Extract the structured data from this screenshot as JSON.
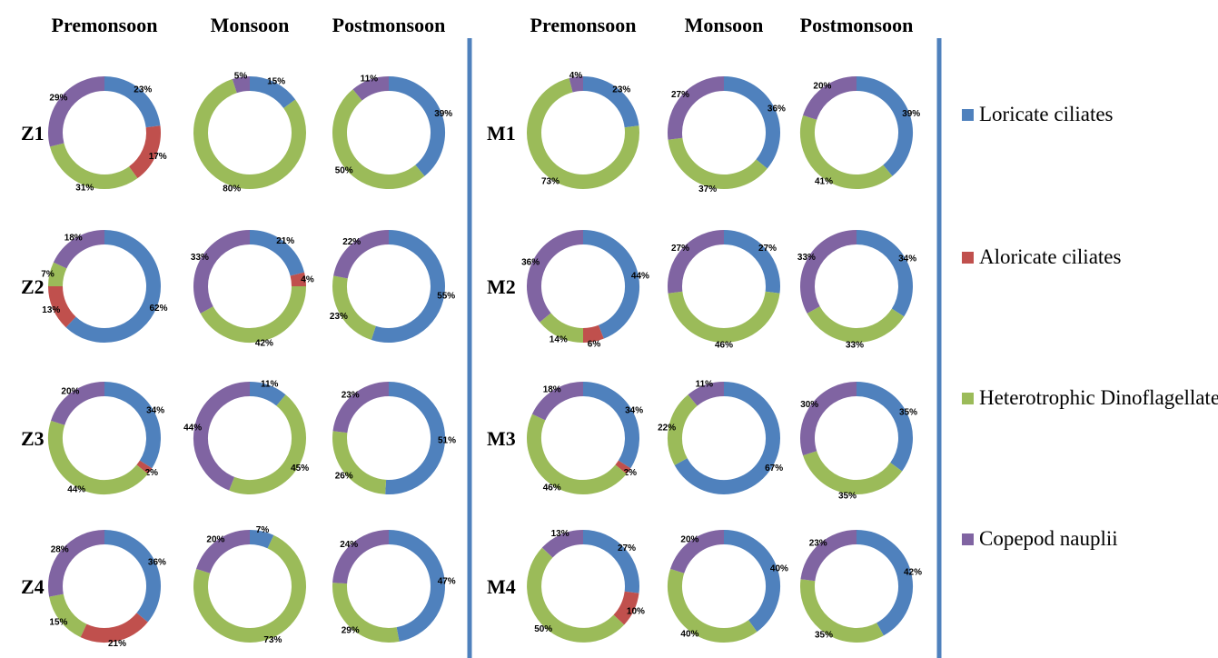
{
  "chart_data": {
    "type": "pie",
    "variant": "donut",
    "title": "",
    "colors": {
      "Loricate ciliates": "#4f81bd",
      "Aloricate ciliates": "#c0504d",
      "Heterotrophic Dinoflagellates": "#9bbb59",
      "Copepod nauplii": "#8064a2",
      "divider": "#4f81bd"
    },
    "legend": {
      "position": "right",
      "items": [
        "Loricate ciliates",
        "Aloricate ciliates",
        "Heterotrophic Dinoflagellates",
        "Copepod nauplii"
      ]
    },
    "panels": [
      {
        "seasons": [
          "Premonsoon",
          "Monsoon",
          "Postmonsoon"
        ],
        "rows": [
          {
            "label": "Z1",
            "charts": [
              {
                "values": [
                  23,
                  17,
                  31,
                  29
                ]
              },
              {
                "values": [
                  15,
                  0,
                  80,
                  5
                ]
              },
              {
                "values": [
                  39,
                  0,
                  50,
                  11
                ]
              }
            ]
          },
          {
            "label": "Z2",
            "charts": [
              {
                "values": [
                  62,
                  13,
                  7,
                  18
                ]
              },
              {
                "values": [
                  21,
                  4,
                  42,
                  33
                ]
              },
              {
                "values": [
                  55,
                  0,
                  23,
                  22
                ]
              }
            ]
          },
          {
            "label": "Z3",
            "charts": [
              {
                "values": [
                  34,
                  2,
                  44,
                  20
                ]
              },
              {
                "values": [
                  11,
                  0,
                  45,
                  44
                ]
              },
              {
                "values": [
                  51,
                  0,
                  26,
                  23
                ]
              }
            ]
          },
          {
            "label": "Z4",
            "charts": [
              {
                "values": [
                  36,
                  21,
                  15,
                  28
                ]
              },
              {
                "values": [
                  7,
                  0,
                  73,
                  20
                ]
              },
              {
                "values": [
                  47,
                  0,
                  29,
                  24
                ]
              }
            ]
          }
        ]
      },
      {
        "seasons": [
          "Premonsoon",
          "Monsoon",
          "Postmonsoon"
        ],
        "rows": [
          {
            "label": "M1",
            "charts": [
              {
                "values": [
                  23,
                  0,
                  73,
                  4
                ]
              },
              {
                "values": [
                  36,
                  0,
                  37,
                  27
                ]
              },
              {
                "values": [
                  39,
                  0,
                  41,
                  20
                ]
              }
            ]
          },
          {
            "label": "M2",
            "charts": [
              {
                "values": [
                  44,
                  6,
                  14,
                  36
                ]
              },
              {
                "values": [
                  27,
                  0,
                  46,
                  27
                ]
              },
              {
                "values": [
                  34,
                  0,
                  33,
                  33
                ]
              }
            ]
          },
          {
            "label": "M3",
            "charts": [
              {
                "values": [
                  34,
                  2,
                  46,
                  18
                ]
              },
              {
                "values": [
                  67,
                  0,
                  22,
                  11
                ]
              },
              {
                "values": [
                  35,
                  0,
                  35,
                  30
                ]
              }
            ]
          },
          {
            "label": "M4",
            "charts": [
              {
                "values": [
                  27,
                  10,
                  50,
                  13
                ]
              },
              {
                "values": [
                  40,
                  0,
                  40,
                  20
                ]
              },
              {
                "values": [
                  42,
                  0,
                  35,
                  23
                ]
              }
            ]
          }
        ]
      }
    ]
  }
}
